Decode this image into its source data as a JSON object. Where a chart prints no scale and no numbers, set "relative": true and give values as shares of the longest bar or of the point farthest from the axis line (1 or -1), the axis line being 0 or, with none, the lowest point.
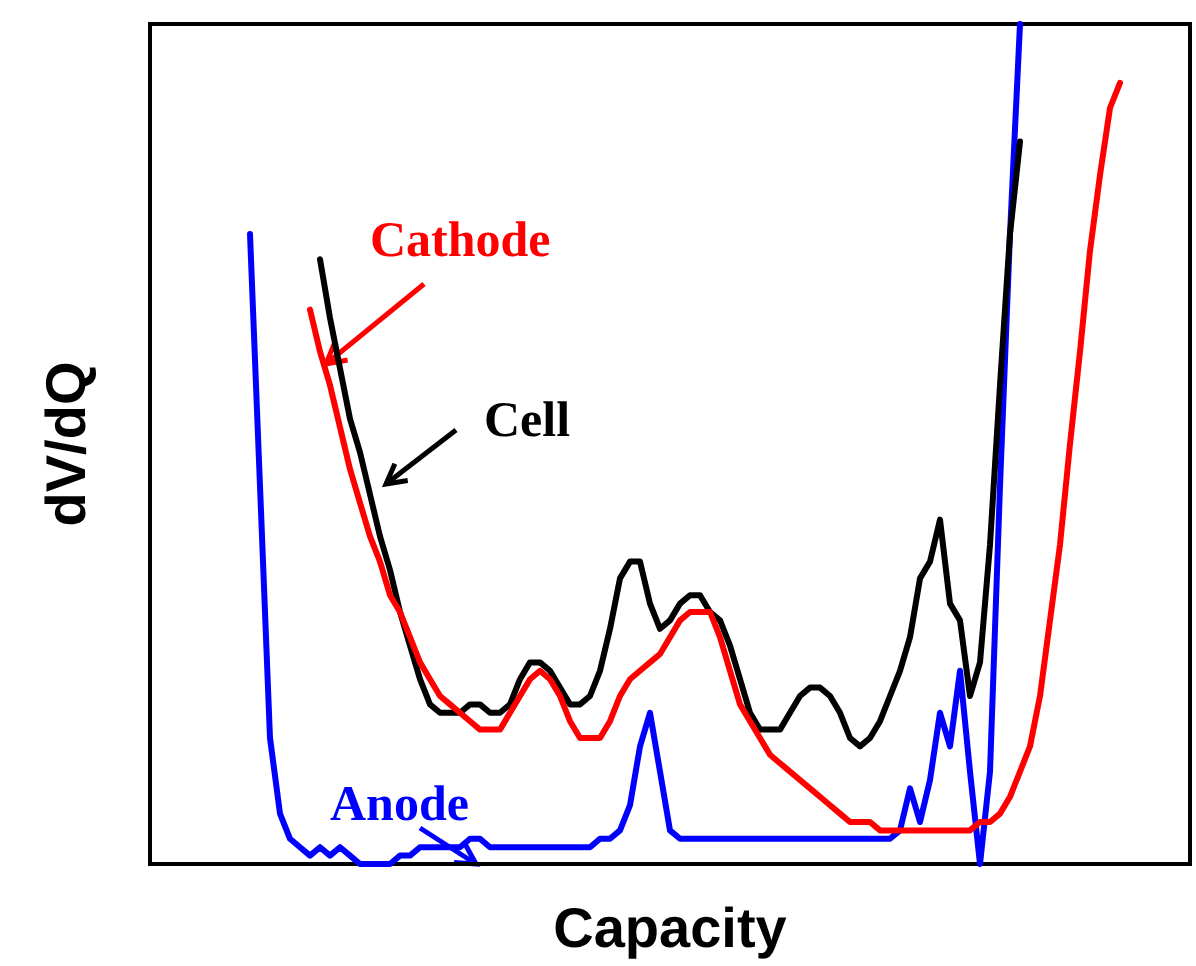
{
  "chart_data": {
    "type": "line",
    "relative": true,
    "xlabel": "Capacity",
    "ylabel": "dV/dQ",
    "legend": false,
    "grid": false,
    "marker": "none",
    "line_style": "solid",
    "categories": [
      null,
      null,
      null,
      null,
      null,
      null,
      null,
      null,
      null,
      null,
      null,
      null,
      null,
      null,
      null,
      null,
      null,
      null,
      null,
      null,
      null,
      null,
      null,
      null,
      null,
      null,
      null,
      null,
      null,
      null,
      null,
      null,
      null,
      null,
      null,
      null,
      null,
      null,
      null,
      null,
      null,
      null,
      null,
      null,
      null,
      null,
      null,
      null,
      null,
      null,
      null,
      null,
      null,
      null,
      null,
      null,
      null,
      null,
      null,
      null,
      null,
      null,
      null,
      null,
      null,
      null,
      null,
      null,
      null,
      null,
      null,
      null,
      null,
      null,
      null,
      null,
      null,
      null,
      null,
      null,
      null,
      null,
      null,
      null,
      null,
      null,
      null,
      null,
      null,
      null,
      null,
      null,
      null,
      null,
      null,
      null,
      null,
      null,
      null,
      null,
      null,
      null,
      null,
      null,
      null
    ],
    "series": [
      {
        "name": "Cathode",
        "color": "#ff0000",
        "values": [
          null,
          null,
          null,
          null,
          null,
          null,
          null,
          null,
          null,
          null,
          null,
          null,
          null,
          null,
          null,
          null,
          0.66,
          0.61,
          0.57,
          0.52,
          0.47,
          0.43,
          0.39,
          0.36,
          0.32,
          0.3,
          0.27,
          0.24,
          0.22,
          0.2,
          0.19,
          0.18,
          0.17,
          0.16,
          0.16,
          0.16,
          0.18,
          0.2,
          0.22,
          0.23,
          0.22,
          0.2,
          0.17,
          0.15,
          0.15,
          0.15,
          0.17,
          0.2,
          0.22,
          0.23,
          0.24,
          0.25,
          0.27,
          0.29,
          0.3,
          0.3,
          0.3,
          0.27,
          0.23,
          0.19,
          0.17,
          0.15,
          0.13,
          0.12,
          0.11,
          0.1,
          0.09,
          0.08,
          0.07,
          0.06,
          0.05,
          0.05,
          0.05,
          0.04,
          0.04,
          0.04,
          0.04,
          0.04,
          0.04,
          0.04,
          0.04,
          0.04,
          0.04,
          0.05,
          0.05,
          0.06,
          0.08,
          0.11,
          0.14,
          0.2,
          0.29,
          0.38,
          0.5,
          0.61,
          0.73,
          0.82,
          0.9,
          0.93,
          null,
          null,
          null,
          null,
          null,
          null,
          null
        ]
      },
      {
        "name": "Cell",
        "color": "#000000",
        "values": [
          null,
          null,
          null,
          null,
          null,
          null,
          null,
          null,
          null,
          null,
          null,
          null,
          null,
          null,
          null,
          null,
          null,
          0.72,
          0.65,
          0.59,
          0.53,
          0.49,
          0.44,
          0.39,
          0.35,
          0.3,
          0.26,
          0.22,
          0.19,
          0.18,
          0.18,
          0.18,
          0.19,
          0.19,
          0.18,
          0.18,
          0.19,
          0.22,
          0.24,
          0.24,
          0.23,
          0.21,
          0.19,
          0.19,
          0.2,
          0.23,
          0.28,
          0.34,
          0.36,
          0.36,
          0.31,
          0.28,
          0.29,
          0.31,
          0.32,
          0.32,
          0.3,
          0.29,
          0.26,
          0.22,
          0.18,
          0.16,
          0.16,
          0.16,
          0.18,
          0.2,
          0.21,
          0.21,
          0.2,
          0.18,
          0.15,
          0.14,
          0.15,
          0.17,
          0.2,
          0.23,
          0.27,
          0.34,
          0.36,
          0.41,
          0.31,
          0.29,
          0.2,
          0.24,
          0.38,
          0.57,
          0.75,
          0.86,
          null,
          null,
          null,
          null,
          null,
          null,
          null,
          null,
          null,
          null,
          null,
          null,
          null,
          null,
          null,
          null,
          null
        ]
      },
      {
        "name": "Anode",
        "color": "#0000ff",
        "values": [
          null,
          null,
          null,
          null,
          null,
          null,
          null,
          null,
          null,
          null,
          0.75,
          0.45,
          0.15,
          0.06,
          0.03,
          0.02,
          0.01,
          0.02,
          0.01,
          0.02,
          0.01,
          0,
          0,
          0,
          0,
          0.01,
          0.01,
          0.02,
          0.02,
          0.02,
          0.02,
          0.02,
          0.03,
          0.03,
          0.02,
          0.02,
          0.02,
          0.02,
          0.02,
          0.02,
          0.02,
          0.02,
          0.02,
          0.02,
          0.02,
          0.03,
          0.03,
          0.04,
          0.07,
          0.14,
          0.18,
          0.11,
          0.04,
          0.03,
          0.03,
          0.03,
          0.03,
          0.03,
          0.03,
          0.03,
          0.03,
          0.03,
          0.03,
          0.03,
          0.03,
          0.03,
          0.03,
          0.03,
          0.03,
          0.03,
          0.03,
          0.03,
          0.03,
          0.03,
          0.03,
          0.04,
          0.09,
          0.05,
          0.1,
          0.18,
          0.14,
          0.23,
          0.11,
          0,
          0.11,
          0.45,
          0.75,
          1,
          null,
          null,
          null,
          null,
          null,
          null,
          null,
          null,
          null,
          null,
          null,
          null,
          null,
          null,
          null,
          null,
          null
        ]
      }
    ]
  }
}
